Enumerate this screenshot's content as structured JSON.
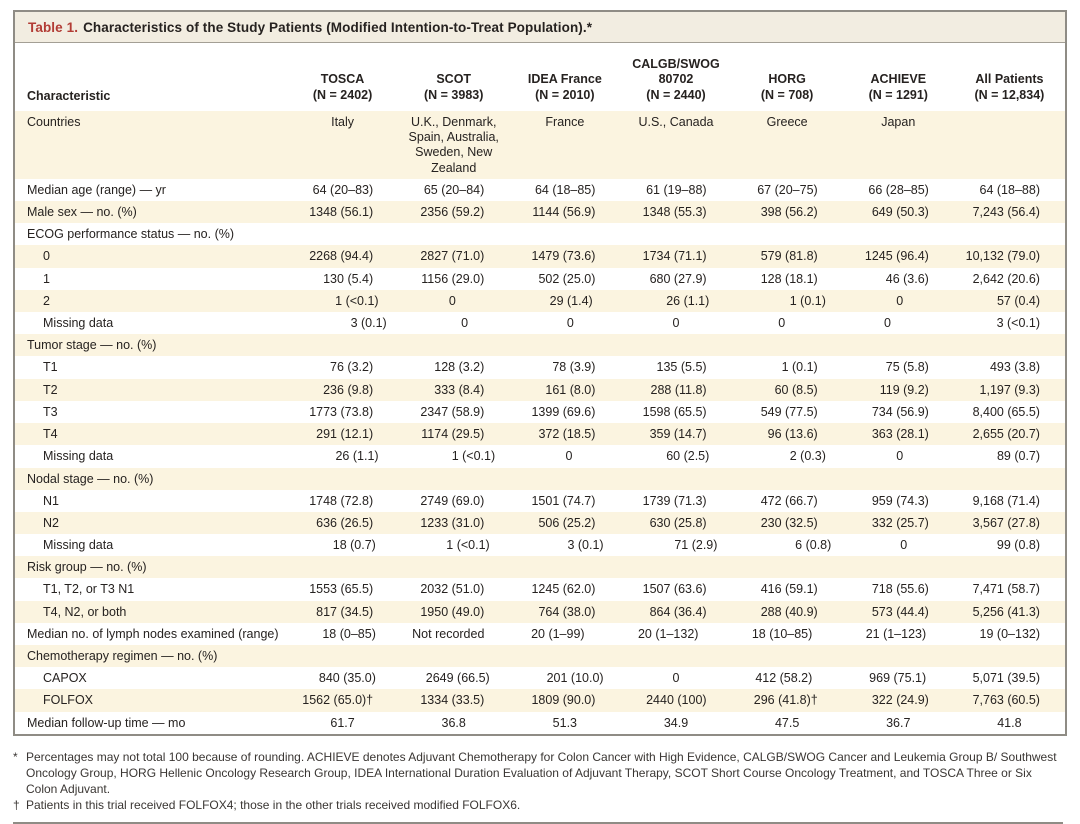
{
  "table": {
    "title_label": "Table 1.",
    "title_text": "Characteristics of the Study Patients (Modified Intention-to-Treat Population).*",
    "characteristic_header": "Characteristic",
    "columns": [
      {
        "name": "TOSCA",
        "n": "(N = 2402)"
      },
      {
        "name": "SCOT",
        "n": "(N = 3983)"
      },
      {
        "name": "IDEA France",
        "n": "(N = 2010)"
      },
      {
        "name": "CALGB/SWOG 80702",
        "n": "(N = 2440)"
      },
      {
        "name": "HORG",
        "n": "(N = 708)"
      },
      {
        "name": "ACHIEVE",
        "n": "(N = 1291)"
      },
      {
        "name": "All Patients",
        "n": "(N = 12,834)"
      }
    ],
    "rows": [
      {
        "label": "Countries",
        "indent": false,
        "section": false,
        "values": [
          "Italy",
          "U.K., Denmark, Spain, Australia, Sweden, New Zealand",
          "France",
          "U.S., Canada",
          "Greece",
          "Japan",
          ""
        ]
      },
      {
        "label": "Median age (range) — yr",
        "indent": false,
        "section": false,
        "values": [
          "64 (20–83)",
          "65 (20–84)",
          "64 (18–85)",
          "61 (19–88)",
          "67 (20–75)",
          "66 (28–85)",
          "64 (18–88)"
        ]
      },
      {
        "label": "Male sex — no. (%)",
        "indent": false,
        "section": false,
        "values": [
          "1348 (56.1)",
          "2356 (59.2)",
          "1144 (56.9)",
          "1348 (55.3)",
          "398 (56.2)",
          "649 (50.3)",
          "7,243 (56.4)"
        ]
      },
      {
        "label": "ECOG performance status — no. (%)",
        "indent": false,
        "section": true,
        "values": null
      },
      {
        "label": "0",
        "indent": true,
        "section": false,
        "values": [
          "2268 (94.4)",
          "2827 (71.0)",
          "1479 (73.6)",
          "1734 (71.1)",
          "579 (81.8)",
          "1245 (96.4)",
          "10,132 (79.0)"
        ]
      },
      {
        "label": "1",
        "indent": true,
        "section": false,
        "values": [
          "130 (5.4)",
          "1156 (29.0)",
          "502 (25.0)",
          "680 (27.9)",
          "128 (18.1)",
          "46 (3.6)",
          "2,642 (20.6)"
        ]
      },
      {
        "label": "2",
        "indent": true,
        "section": false,
        "values": [
          "1 (<0.1)",
          "0",
          "29 (1.4)",
          "26 (1.1)",
          "1 (0.1)",
          "0",
          "57 (0.4)"
        ]
      },
      {
        "label": "Missing data",
        "indent": true,
        "section": false,
        "values": [
          "3 (0.1)",
          "0",
          "0",
          "0",
          "0",
          "0",
          "3 (<0.1)"
        ]
      },
      {
        "label": "Tumor stage — no. (%)",
        "indent": false,
        "section": true,
        "values": null
      },
      {
        "label": "T1",
        "indent": true,
        "section": false,
        "values": [
          "76 (3.2)",
          "128 (3.2)",
          "78 (3.9)",
          "135 (5.5)",
          "1 (0.1)",
          "75 (5.8)",
          "493 (3.8)"
        ]
      },
      {
        "label": "T2",
        "indent": true,
        "section": false,
        "values": [
          "236 (9.8)",
          "333 (8.4)",
          "161 (8.0)",
          "288 (11.8)",
          "60 (8.5)",
          "119 (9.2)",
          "1,197 (9.3)"
        ]
      },
      {
        "label": "T3",
        "indent": true,
        "section": false,
        "values": [
          "1773 (73.8)",
          "2347 (58.9)",
          "1399 (69.6)",
          "1598 (65.5)",
          "549 (77.5)",
          "734 (56.9)",
          "8,400 (65.5)"
        ]
      },
      {
        "label": "T4",
        "indent": true,
        "section": false,
        "values": [
          "291 (12.1)",
          "1174 (29.5)",
          "372 (18.5)",
          "359 (14.7)",
          "96 (13.6)",
          "363 (28.1)",
          "2,655 (20.7)"
        ]
      },
      {
        "label": "Missing data",
        "indent": true,
        "section": false,
        "values": [
          "26 (1.1)",
          "1 (<0.1)",
          "0",
          "60 (2.5)",
          "2 (0.3)",
          "0",
          "89 (0.7)"
        ]
      },
      {
        "label": "Nodal stage — no. (%)",
        "indent": false,
        "section": true,
        "values": null
      },
      {
        "label": "N1",
        "indent": true,
        "section": false,
        "values": [
          "1748 (72.8)",
          "2749 (69.0)",
          "1501 (74.7)",
          "1739 (71.3)",
          "472 (66.7)",
          "959 (74.3)",
          "9,168 (71.4)"
        ]
      },
      {
        "label": "N2",
        "indent": true,
        "section": false,
        "values": [
          "636 (26.5)",
          "1233 (31.0)",
          "506 (25.2)",
          "630 (25.8)",
          "230 (32.5)",
          "332 (25.7)",
          "3,567 (27.8)"
        ]
      },
      {
        "label": "Missing data",
        "indent": true,
        "section": false,
        "values": [
          "18 (0.7)",
          "1 (<0.1)",
          "3 (0.1)",
          "71 (2.9)",
          "6 (0.8)",
          "0",
          "99 (0.8)"
        ]
      },
      {
        "label": "Risk group — no. (%)",
        "indent": false,
        "section": true,
        "values": null
      },
      {
        "label": "T1, T2, or T3 N1",
        "indent": true,
        "section": false,
        "values": [
          "1553 (65.5)",
          "2032 (51.0)",
          "1245 (62.0)",
          "1507 (63.6)",
          "416 (59.1)",
          "718 (55.6)",
          "7,471 (58.7)"
        ]
      },
      {
        "label": "T4, N2, or both",
        "indent": true,
        "section": false,
        "values": [
          "817 (34.5)",
          "1950 (49.0)",
          "764 (38.0)",
          "864 (36.4)",
          "288 (40.9)",
          "573 (44.4)",
          "5,256 (41.3)"
        ]
      },
      {
        "label": "Median no. of lymph nodes examined (range)",
        "indent": false,
        "section": false,
        "values": [
          "18 (0–85)",
          "Not recorded",
          "20 (1–99)",
          "20 (1–132)",
          "18 (10–85)",
          "21 (1–123)",
          "19 (0–132)"
        ]
      },
      {
        "label": "Chemotherapy regimen — no. (%)",
        "indent": false,
        "section": true,
        "values": null
      },
      {
        "label": "CAPOX",
        "indent": true,
        "section": false,
        "values": [
          "840 (35.0)",
          "2649 (66.5)",
          "201 (10.0)",
          "0",
          "412 (58.2)",
          "969 (75.1)",
          "5,071 (39.5)"
        ]
      },
      {
        "label": "FOLFOX",
        "indent": true,
        "section": false,
        "values": [
          "1562 (65.0)†",
          "1334 (33.5)",
          "1809 (90.0)",
          "2440 (100)",
          "296 (41.8)†",
          "322 (24.9)",
          "7,763 (60.5)"
        ]
      },
      {
        "label": "Median follow-up time — mo",
        "indent": false,
        "section": false,
        "values": [
          "61.7",
          "36.8",
          "51.3",
          "34.9",
          "47.5",
          "36.7",
          "41.8"
        ]
      }
    ]
  },
  "footnotes": [
    {
      "marker": "*",
      "text": "Percentages may not total 100 because of rounding. ACHIEVE denotes Adjuvant Chemotherapy for Colon Cancer with High Evidence, CALGB/SWOG Cancer and Leukemia Group B/ Southwest Oncology Group, HORG Hellenic Oncology Research Group, IDEA International Duration Evaluation of Adjuvant Therapy, SCOT Short Course Oncology Treatment, and TOSCA Three or Six Colon Adjuvant."
    },
    {
      "marker": "†",
      "text": "Patients in this trial received FOLFOX4; those in the other trials received modified FOLFOX6."
    }
  ],
  "colors": {
    "accent_red": "#b23c35",
    "stripe_cream": "#fbf4e0",
    "titlebar_beige": "#f2ede1",
    "border_gray": "#8f8c85"
  }
}
